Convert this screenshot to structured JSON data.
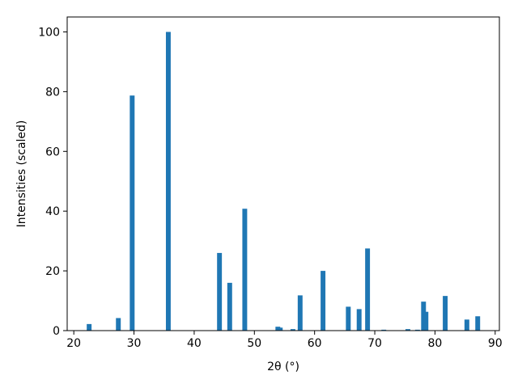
{
  "chart_data": {
    "type": "bar",
    "x_label": "2θ (°)",
    "y_label": "Intensities (scaled)",
    "x": [
      22.55,
      27.4,
      29.7,
      35.7,
      44.2,
      45.9,
      48.4,
      53.9,
      54.3,
      56.4,
      57.6,
      61.4,
      65.6,
      67.4,
      68.8,
      71.5,
      75.5,
      77.1,
      78.1,
      78.5,
      81.7,
      85.3,
      87.1
    ],
    "values": [
      2.2,
      4.2,
      78.7,
      100,
      26,
      16,
      40.8,
      1.3,
      1,
      0.5,
      11.8,
      20,
      8,
      7.2,
      27.5,
      0.3,
      0.5,
      0.3,
      9.7,
      6.3,
      11.6,
      3.7,
      4.8
    ],
    "color": "#1f77b4",
    "xlim": [
      18.9,
      90.7
    ],
    "ylim": [
      0,
      105
    ],
    "xticks": [
      20,
      30,
      40,
      50,
      60,
      70,
      80,
      90
    ],
    "yticks": [
      0,
      20,
      40,
      60,
      80,
      100
    ]
  }
}
